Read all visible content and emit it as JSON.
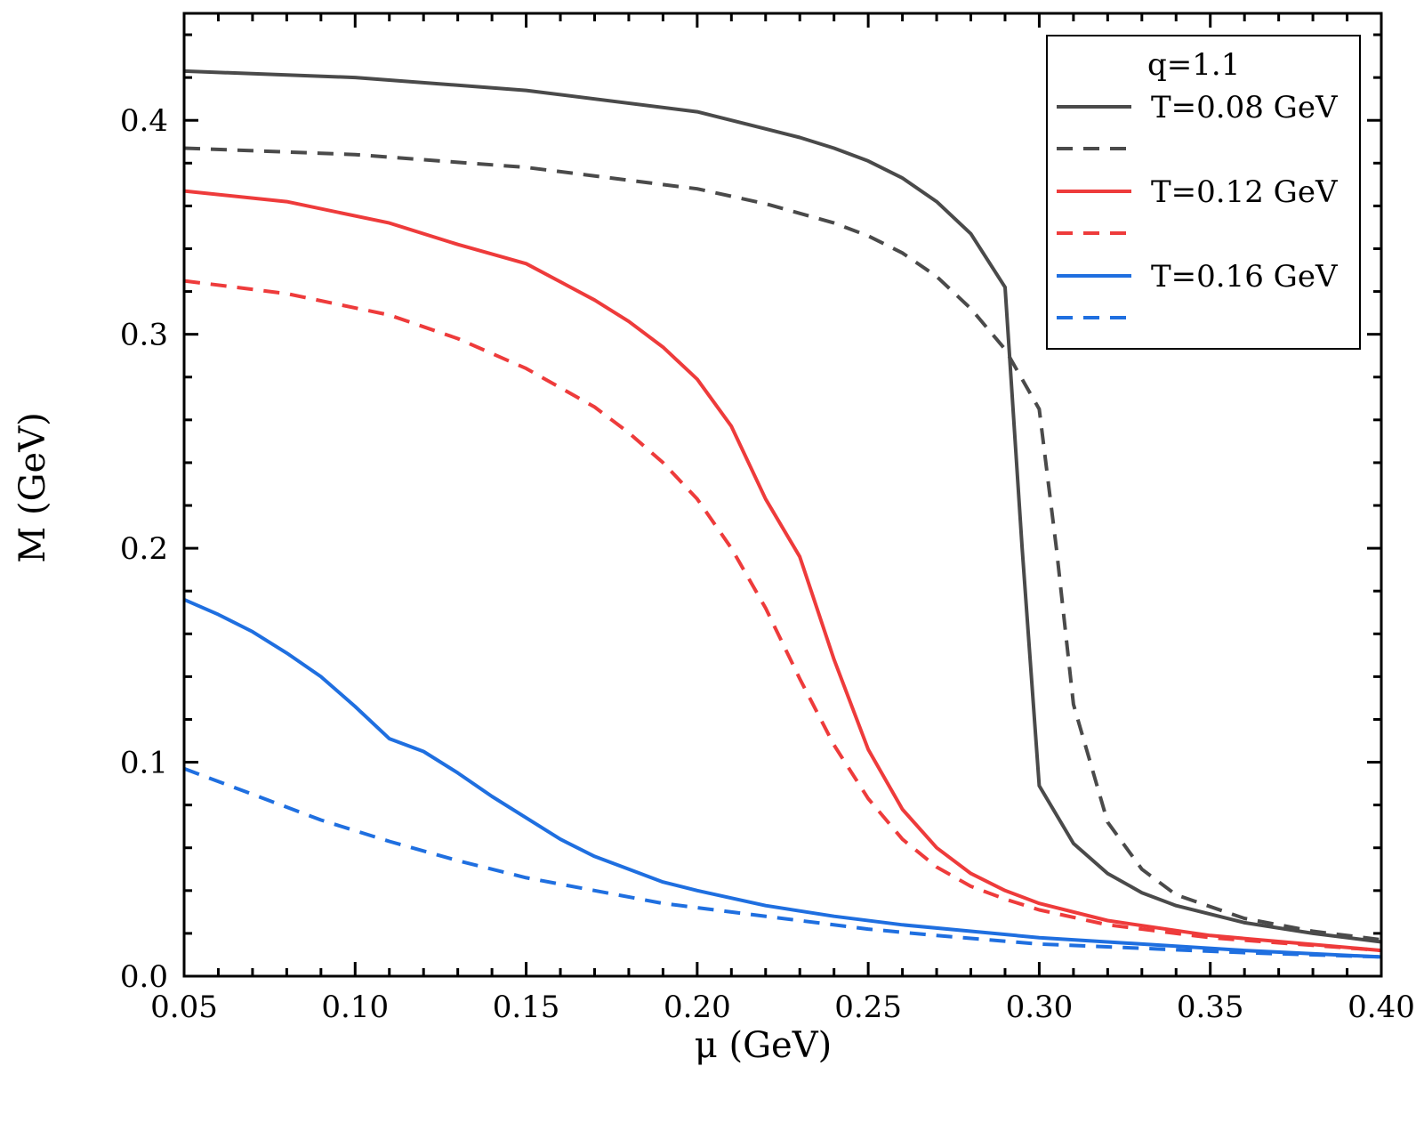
{
  "chart_data": {
    "type": "line",
    "title": "",
    "xlabel": "μ (GeV)",
    "ylabel": "M (GeV)",
    "xlim": [
      0.05,
      0.4
    ],
    "ylim": [
      0.0,
      0.45
    ],
    "grid": false,
    "legend_placement": "top-right",
    "legend_title": "q=1.1",
    "xticks": [
      0.05,
      0.1,
      0.15,
      0.2,
      0.25,
      0.3,
      0.35,
      0.4
    ],
    "xtick_labels": [
      "0.05",
      "0.10",
      "0.15",
      "0.20",
      "0.25",
      "0.30",
      "0.35",
      "0.40"
    ],
    "yticks": [
      0.0,
      0.1,
      0.2,
      0.3,
      0.4
    ],
    "ytick_labels": [
      "0.0",
      "0.1",
      "0.2",
      "0.3",
      "0.4"
    ],
    "series": [
      {
        "name": "T=0.08 GeV",
        "color": "#4a4a4a",
        "style": "solid",
        "x": [
          0.05,
          0.1,
          0.15,
          0.2,
          0.21,
          0.22,
          0.23,
          0.24,
          0.25,
          0.26,
          0.27,
          0.28,
          0.29,
          0.295,
          0.3,
          0.31,
          0.32,
          0.33,
          0.34,
          0.36,
          0.38,
          0.4
        ],
        "y": [
          0.423,
          0.42,
          0.414,
          0.404,
          0.4,
          0.396,
          0.392,
          0.387,
          0.381,
          0.373,
          0.362,
          0.347,
          0.322,
          0.2,
          0.089,
          0.062,
          0.048,
          0.039,
          0.033,
          0.025,
          0.02,
          0.016
        ]
      },
      {
        "name": "",
        "color": "#4a4a4a",
        "style": "dashed",
        "x": [
          0.05,
          0.1,
          0.15,
          0.2,
          0.22,
          0.24,
          0.25,
          0.26,
          0.27,
          0.28,
          0.29,
          0.3,
          0.305,
          0.31,
          0.32,
          0.33,
          0.34,
          0.36,
          0.38,
          0.4
        ],
        "y": [
          0.387,
          0.384,
          0.378,
          0.368,
          0.361,
          0.352,
          0.346,
          0.338,
          0.327,
          0.312,
          0.293,
          0.265,
          0.2,
          0.127,
          0.072,
          0.05,
          0.038,
          0.027,
          0.021,
          0.017
        ]
      },
      {
        "name": "T=0.12 GeV",
        "color": "#ee3b3b",
        "style": "solid",
        "x": [
          0.05,
          0.08,
          0.11,
          0.13,
          0.15,
          0.17,
          0.18,
          0.19,
          0.2,
          0.21,
          0.22,
          0.23,
          0.24,
          0.25,
          0.26,
          0.27,
          0.28,
          0.29,
          0.3,
          0.32,
          0.35,
          0.4
        ],
        "y": [
          0.367,
          0.362,
          0.352,
          0.342,
          0.333,
          0.316,
          0.306,
          0.294,
          0.279,
          0.257,
          0.223,
          0.196,
          0.148,
          0.106,
          0.078,
          0.06,
          0.048,
          0.04,
          0.034,
          0.026,
          0.019,
          0.012
        ]
      },
      {
        "name": "",
        "color": "#ee3b3b",
        "style": "dashed",
        "x": [
          0.05,
          0.08,
          0.11,
          0.13,
          0.15,
          0.17,
          0.18,
          0.19,
          0.2,
          0.21,
          0.22,
          0.23,
          0.24,
          0.25,
          0.26,
          0.27,
          0.28,
          0.29,
          0.3,
          0.32,
          0.35,
          0.4
        ],
        "y": [
          0.325,
          0.319,
          0.309,
          0.298,
          0.284,
          0.266,
          0.254,
          0.24,
          0.223,
          0.2,
          0.172,
          0.139,
          0.108,
          0.083,
          0.064,
          0.051,
          0.042,
          0.036,
          0.031,
          0.024,
          0.018,
          0.012
        ]
      },
      {
        "name": "T=0.16 GeV",
        "color": "#1f6fe0",
        "style": "solid",
        "x": [
          0.05,
          0.06,
          0.07,
          0.08,
          0.09,
          0.1,
          0.11,
          0.12,
          0.13,
          0.14,
          0.15,
          0.16,
          0.17,
          0.18,
          0.19,
          0.2,
          0.22,
          0.24,
          0.26,
          0.28,
          0.3,
          0.33,
          0.36,
          0.4
        ],
        "y": [
          0.176,
          0.169,
          0.161,
          0.151,
          0.14,
          0.126,
          0.111,
          0.105,
          0.095,
          0.084,
          0.074,
          0.064,
          0.056,
          0.05,
          0.044,
          0.04,
          0.033,
          0.028,
          0.024,
          0.021,
          0.018,
          0.015,
          0.012,
          0.009
        ]
      },
      {
        "name": "",
        "color": "#1f6fe0",
        "style": "dashed",
        "x": [
          0.05,
          0.07,
          0.09,
          0.11,
          0.13,
          0.15,
          0.17,
          0.19,
          0.21,
          0.23,
          0.25,
          0.27,
          0.3,
          0.33,
          0.36,
          0.4
        ],
        "y": [
          0.097,
          0.085,
          0.073,
          0.063,
          0.054,
          0.046,
          0.04,
          0.034,
          0.03,
          0.026,
          0.022,
          0.019,
          0.015,
          0.013,
          0.011,
          0.009
        ]
      }
    ]
  }
}
